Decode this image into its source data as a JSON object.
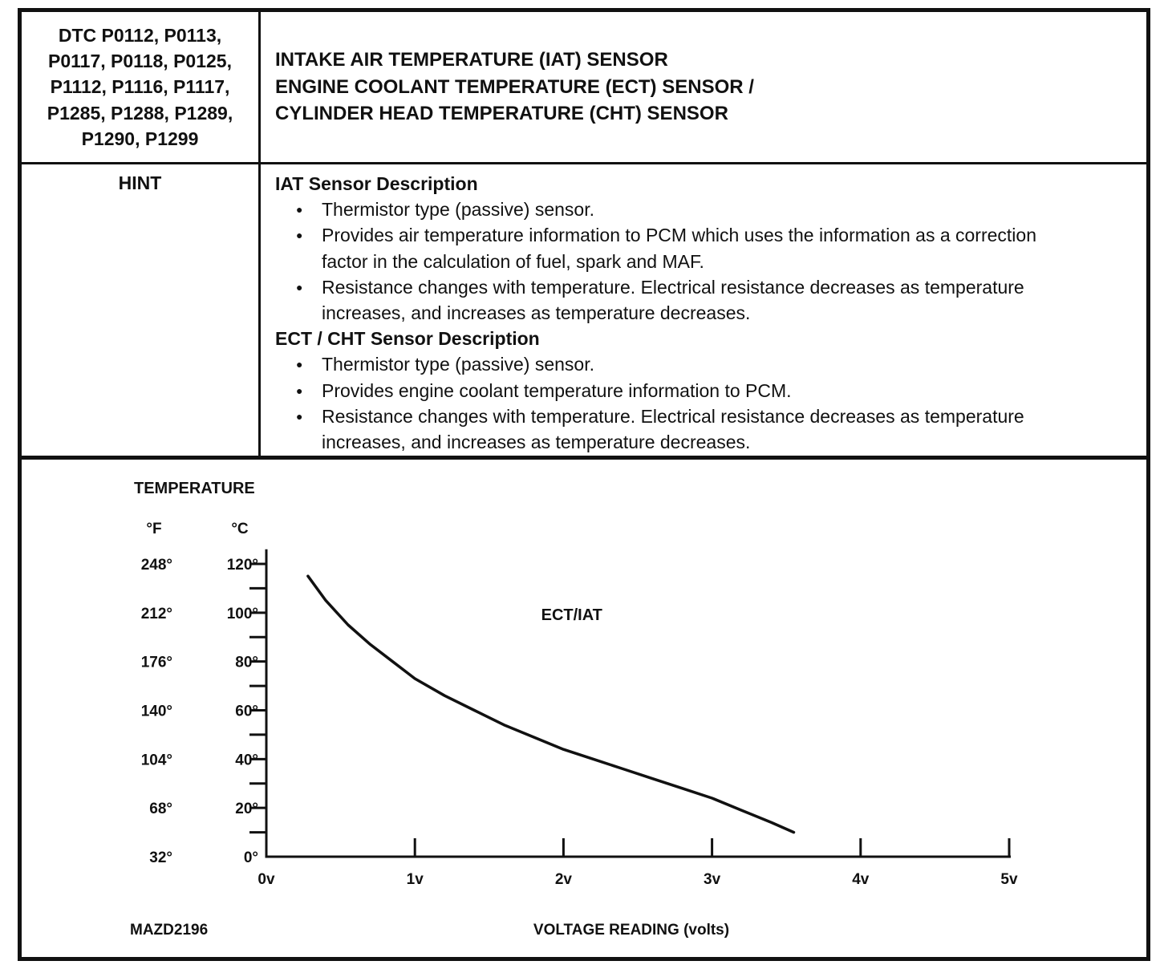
{
  "header": {
    "dtc_lines": [
      "DTC P0112, P0113,",
      "P0117, P0118, P0125,",
      "P1112, P1116, P1117,",
      "P1285, P1288, P1289,",
      "P1290, P1299"
    ],
    "title_lines": [
      "INTAKE AIR TEMPERATURE (IAT) SENSOR",
      "ENGINE COOLANT TEMPERATURE (ECT) SENSOR /",
      "CYLINDER HEAD TEMPERATURE (CHT) SENSOR"
    ]
  },
  "hint": {
    "label": "HINT",
    "sections": [
      {
        "heading": "IAT Sensor Description",
        "bullets": [
          "Thermistor type (passive) sensor.",
          "Provides air temperature information to PCM which uses the information as a correction factor in the calculation of fuel, spark and MAF.",
          "Resistance changes with temperature.  Electrical resistance decreases as temperature increases, and increases as temperature decreases."
        ]
      },
      {
        "heading": "ECT / CHT Sensor Description",
        "bullets": [
          "Thermistor type (passive) sensor.",
          "Provides engine coolant temperature information to PCM.",
          "Resistance changes with temperature.  Electrical resistance decreases as temperature increases, and increases as temperature decreases."
        ]
      }
    ]
  },
  "chart_data": {
    "type": "line",
    "title": "TEMPERATURE",
    "xlabel": "VOLTAGE READING (volts)",
    "grid": false,
    "x_axis": {
      "range_volts": [
        0,
        5
      ],
      "ticks": [
        {
          "v": 0,
          "label": "0v"
        },
        {
          "v": 1,
          "label": "1v"
        },
        {
          "v": 2,
          "label": "2v"
        },
        {
          "v": 3,
          "label": "3v"
        },
        {
          "v": 4,
          "label": "4v"
        },
        {
          "v": 5,
          "label": "5v"
        }
      ]
    },
    "y_axis": {
      "unit_f": "°F",
      "unit_c": "°C",
      "range_c": [
        0,
        126
      ],
      "ticks": [
        {
          "temp_c": 120,
          "label_f": "248°",
          "label_c": "120°"
        },
        {
          "temp_c": 100,
          "label_f": "212°",
          "label_c": "100°"
        },
        {
          "temp_c": 80,
          "label_f": "176°",
          "label_c": "80°"
        },
        {
          "temp_c": 60,
          "label_f": "140°",
          "label_c": "60°"
        },
        {
          "temp_c": 40,
          "label_f": "104°",
          "label_c": "40°"
        },
        {
          "temp_c": 20,
          "label_f": "68°",
          "label_c": "20°"
        },
        {
          "temp_c": 0,
          "label_f": "32°",
          "label_c": "0°"
        }
      ],
      "minor_ticks_c": [
        10,
        20,
        30,
        40,
        50,
        60,
        70,
        80,
        90,
        100,
        110,
        120
      ]
    },
    "series": [
      {
        "name": "ECT/IAT",
        "x_volts": [
          0.28,
          0.4,
          0.55,
          0.7,
          0.85,
          1.0,
          1.2,
          1.4,
          1.6,
          1.8,
          2.0,
          2.2,
          2.4,
          2.6,
          2.8,
          3.0,
          3.2,
          3.4,
          3.55
        ],
        "y_temp_c": [
          115,
          105,
          95,
          87,
          80,
          73,
          66,
          60,
          54,
          49,
          44,
          40,
          36,
          32,
          28,
          24,
          19,
          14,
          10
        ],
        "label_pos": {
          "v": 1.85,
          "temp_c": 97
        }
      }
    ]
  },
  "footer": {
    "doc_code": "MAZD2196"
  }
}
